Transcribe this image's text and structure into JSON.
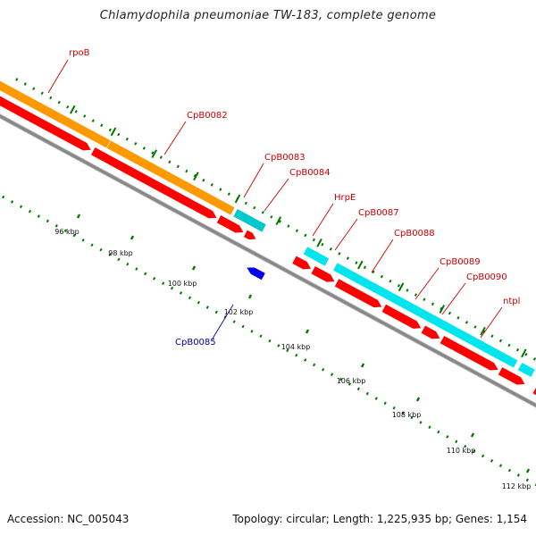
{
  "title": "Chlamydophila pneumoniae TW-183, complete genome",
  "footer": {
    "accession": "Accession: NC_005043",
    "topology": "Topology: circular; Length: 1,225,935 bp; Genes: 1,154"
  },
  "colors": {
    "feature_orange": "#ff9900",
    "feature_cyan": "#00e5ee",
    "feature_red": "#ff0000",
    "feature_blue": "#0000ee",
    "backbone": "#888888",
    "tick": "#007700",
    "label_red": "#cc0000",
    "label_blue": "#000099"
  },
  "scale_labels": [
    "96 kbp",
    "98 kbp",
    "100 kbp",
    "102 kbp",
    "104 kbp",
    "106 kbp",
    "108 kbp",
    "110 kbp",
    "112 kbp"
  ],
  "gene_labels": [
    {
      "text": "rpoB",
      "strand": "plus"
    },
    {
      "text": "CpB0082",
      "strand": "plus"
    },
    {
      "text": "CpB0083",
      "strand": "plus"
    },
    {
      "text": "CpB0084",
      "strand": "plus"
    },
    {
      "text": "HrpE",
      "strand": "plus"
    },
    {
      "text": "CpB0087",
      "strand": "plus"
    },
    {
      "text": "CpB0088",
      "strand": "plus"
    },
    {
      "text": "CpB0089",
      "strand": "plus"
    },
    {
      "text": "CpB0090",
      "strand": "plus"
    },
    {
      "text": "ntpl",
      "strand": "plus"
    },
    {
      "text": "CpB0085",
      "strand": "minus"
    }
  ]
}
